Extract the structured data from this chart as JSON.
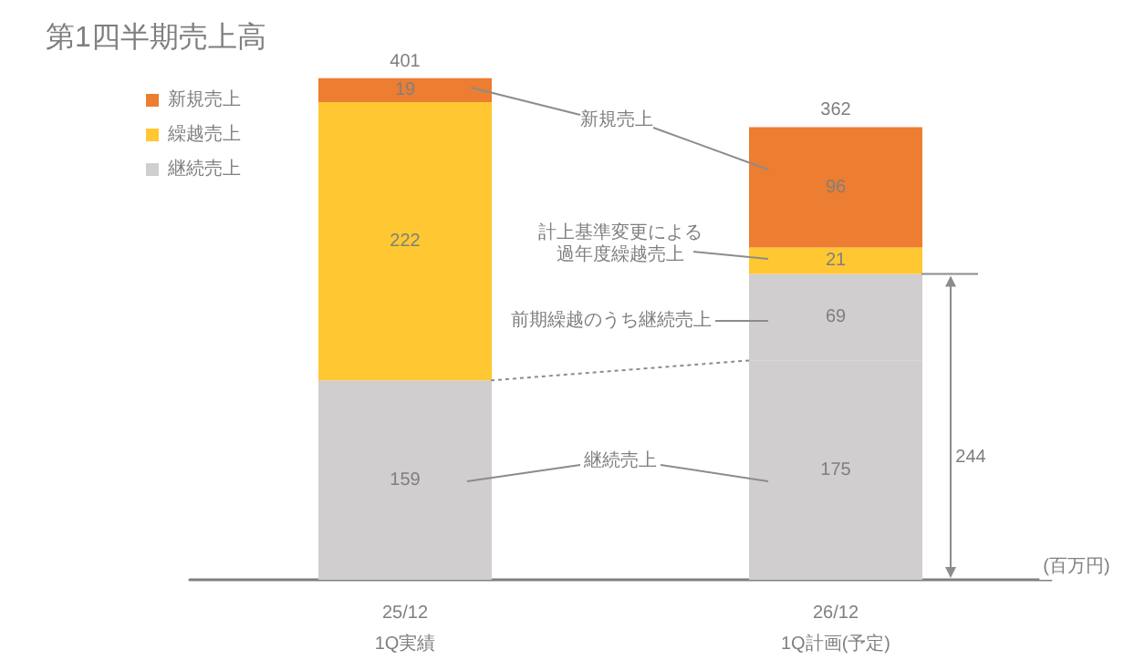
{
  "chart_data": {
    "type": "bar",
    "title": "第1四半期売上高",
    "categories": [
      "25/12\n1Q実績",
      "26/12\n1Q計画(予定)"
    ],
    "stacked": true,
    "data_labels": true,
    "totals": [
      "401",
      "362"
    ],
    "legend": "top left",
    "grid": false,
    "tick_labels": "x",
    "series": [
      {
        "name": "継続売上",
        "color": "#d0cece",
        "values": [
          159,
          175
        ]
      },
      {
        "color": "#d0cece",
        "values": [
          null,
          69
        ]
      },
      {
        "name": "繰越売上",
        "color": "#ffc832",
        "values": [
          222,
          21
        ]
      },
      {
        "name": "新規売上",
        "color": "#ed7d31",
        "values": [
          19,
          96
        ]
      }
    ],
    "annotations": [
      "新規売上",
      "計上基準変更による過年度繰越売上",
      "前期繰越のうち継続売上",
      "継続売上",
      "244",
      "(百万円)"
    ]
  }
}
